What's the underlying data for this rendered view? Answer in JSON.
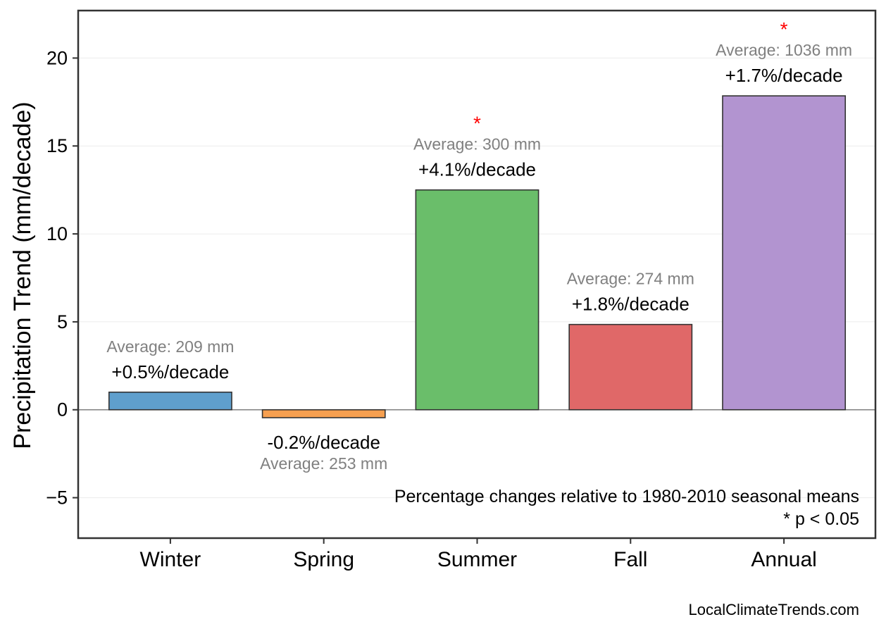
{
  "chart_data": {
    "type": "bar",
    "ylabel": "Precipitation Trend (mm/decade)",
    "xlabel": "",
    "title": "",
    "ylim": [
      -7.3,
      22.7
    ],
    "yticks": [
      -5,
      0,
      5,
      10,
      15,
      20
    ],
    "ytick_labels": [
      "−5",
      "0",
      "5",
      "10",
      "15",
      "20"
    ],
    "grid": "horizontal",
    "categories": [
      "Winter",
      "Spring",
      "Summer",
      "Fall",
      "Annual"
    ],
    "values": [
      1.0,
      -0.45,
      12.5,
      4.85,
      17.85
    ],
    "colors": [
      "#5f9fcd",
      "#f7a050",
      "#6abe6a",
      "#e06868",
      "#b294d0"
    ],
    "pct_labels": [
      "+0.5%/decade",
      "-0.2%/decade",
      "+4.1%/decade",
      "+1.8%/decade",
      "+1.7%/decade"
    ],
    "avg_labels": [
      "Average: 209 mm",
      "Average: 253 mm",
      "Average: 300 mm",
      "Average: 274 mm",
      "Average: 1036 mm"
    ],
    "significant": [
      false,
      false,
      true,
      false,
      true
    ],
    "significance_marker": "*",
    "annotations": [
      "Percentage changes relative to 1980-2010 seasonal means",
      "* p < 0.05"
    ],
    "credit": "LocalClimateTrends.com"
  }
}
